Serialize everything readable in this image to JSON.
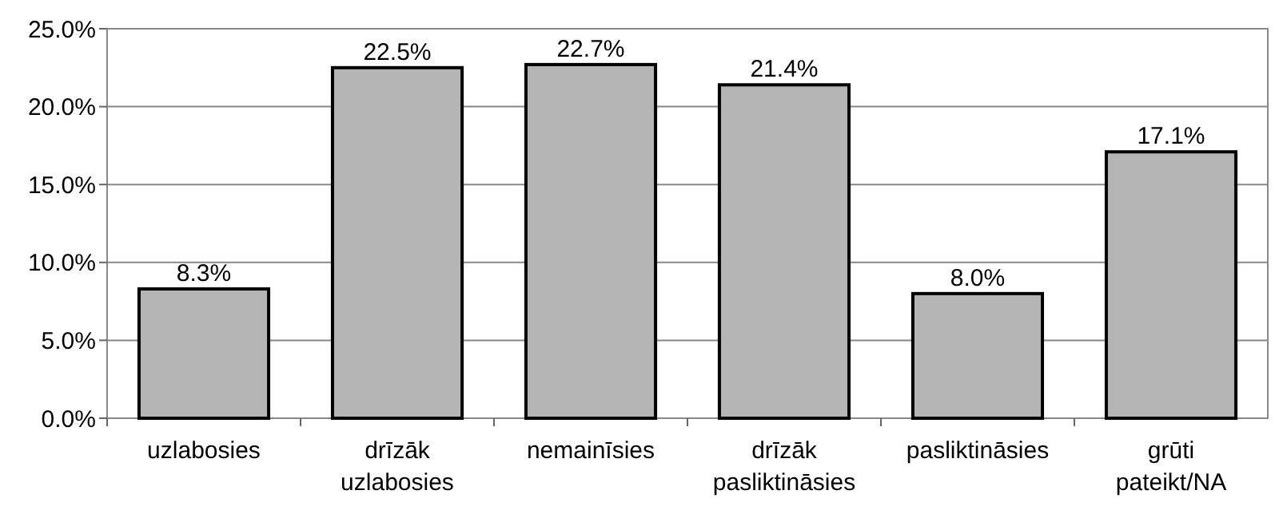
{
  "chart_data": {
    "type": "bar",
    "categories": [
      "uzlabosies",
      "drīzāk uzlabosies",
      "nemainīsies",
      "drīzāk pasliktināsies",
      "pasliktināsies",
      "grūti pateikt/NA"
    ],
    "values": [
      8.3,
      22.5,
      22.7,
      21.4,
      8.0,
      17.1
    ],
    "value_labels": [
      "8.3%",
      "22.5%",
      "22.7%",
      "21.4%",
      "8.0%",
      "17.1%"
    ],
    "color": "#b4b4b4",
    "ylim": [
      0,
      25
    ],
    "yticks": [
      {
        "value": 0,
        "label": "0.0%"
      },
      {
        "value": 5,
        "label": "5.0%"
      },
      {
        "value": 10,
        "label": "10.0%"
      },
      {
        "value": 15,
        "label": "15.0%"
      },
      {
        "value": 20,
        "label": "20.0%"
      },
      {
        "value": 25,
        "label": "25.0%"
      }
    ],
    "grid": "y"
  }
}
